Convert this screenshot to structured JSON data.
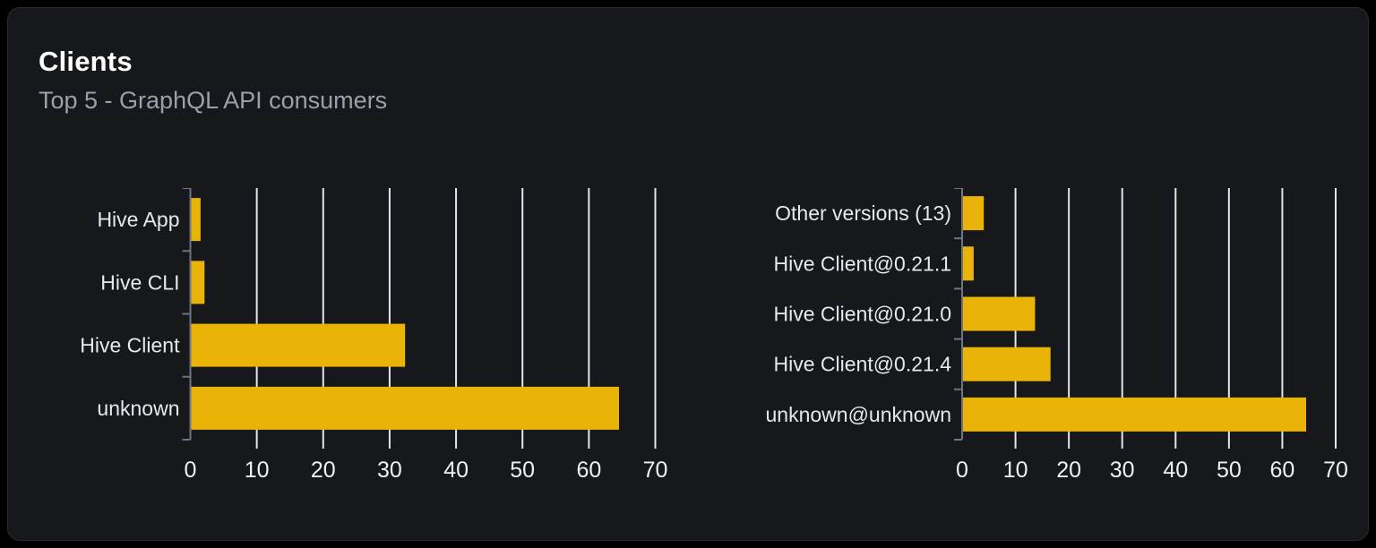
{
  "card": {
    "title": "Clients",
    "subtitle": "Top 5 - GraphQL API consumers"
  },
  "colors": {
    "page_background": "#000000",
    "card_background": "#16181c",
    "card_border": "#272a31",
    "title_text": "#ffffff",
    "subtitle_text": "#9aa1ab",
    "bar_fill": "#eab308",
    "gridline": "#e2e5ea",
    "axis_line": "#6f7580",
    "category_label": "#e6e8ec",
    "tick_label": "#eef0f3"
  },
  "chart_data": [
    {
      "type": "bar",
      "orientation": "horizontal",
      "categories": [
        "Hive App",
        "Hive CLI",
        "Hive Client",
        "unknown"
      ],
      "values": [
        1.4,
        2,
        32.2,
        64.4
      ],
      "xlim": [
        0,
        70
      ],
      "xticks": [
        0,
        10,
        20,
        30,
        40,
        50,
        60,
        70
      ],
      "grid": true,
      "legend": false
    },
    {
      "type": "bar",
      "orientation": "horizontal",
      "categories": [
        "Other versions (13)",
        "Hive Client@0.21.1",
        "Hive Client@0.21.0",
        "Hive Client@0.21.4",
        "unknown@unknown"
      ],
      "values": [
        3.9,
        2,
        13.5,
        16.4,
        64.3
      ],
      "xlim": [
        0,
        70
      ],
      "xticks": [
        0,
        10,
        20,
        30,
        40,
        50,
        60,
        70
      ],
      "grid": true,
      "legend": false
    }
  ]
}
